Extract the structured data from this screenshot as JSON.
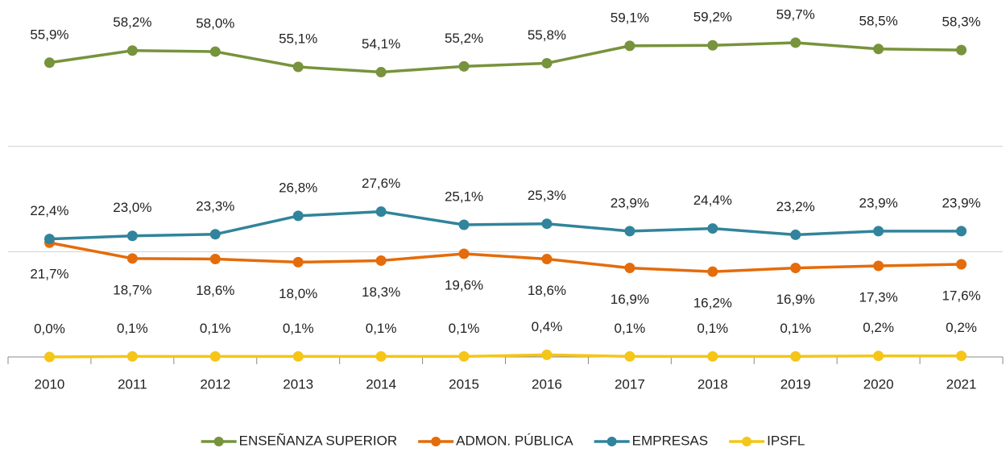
{
  "chart_data": {
    "type": "line",
    "categories": [
      "2010",
      "2011",
      "2012",
      "2013",
      "2014",
      "2015",
      "2016",
      "2017",
      "2018",
      "2019",
      "2020",
      "2021"
    ],
    "ylim": [
      0,
      60
    ],
    "yticks": [
      0,
      20,
      40
    ],
    "grid": true,
    "legend": "bottom",
    "series": [
      {
        "name": "ENSEÑANZA SUPERIOR",
        "color": "#77933c",
        "values": [
          55.9,
          58.2,
          58.0,
          55.1,
          54.1,
          55.2,
          55.8,
          59.1,
          59.2,
          59.7,
          58.5,
          58.3
        ],
        "value_labels": [
          "55,9%",
          "58,2%",
          "58,0%",
          "55,1%",
          "54,1%",
          "55,2%",
          "55,8%",
          "59,1%",
          "59,2%",
          "59,7%",
          "58,5%",
          "58,3%"
        ]
      },
      {
        "name": "ADMON. PÚBLICA",
        "color": "#e46c0a",
        "values": [
          21.7,
          18.7,
          18.6,
          18.0,
          18.3,
          19.6,
          18.6,
          16.9,
          16.2,
          16.9,
          17.3,
          17.6
        ],
        "value_labels": [
          "21,7%",
          "18,7%",
          "18,6%",
          "18,0%",
          "18,3%",
          "19,6%",
          "18,6%",
          "16,9%",
          "16,2%",
          "16,9%",
          "17,3%",
          "17,6%"
        ]
      },
      {
        "name": "EMPRESAS",
        "color": "#31849b",
        "values": [
          22.4,
          23.0,
          23.3,
          26.8,
          27.6,
          25.1,
          25.3,
          23.9,
          24.4,
          23.2,
          23.9,
          23.9
        ],
        "value_labels": [
          "22,4%",
          "23,0%",
          "23,3%",
          "26,8%",
          "27,6%",
          "25,1%",
          "25,3%",
          "23,9%",
          "24,4%",
          "23,2%",
          "23,9%",
          "23,9%"
        ]
      },
      {
        "name": "IPSFL",
        "color": "#f5c518",
        "values": [
          0.0,
          0.1,
          0.1,
          0.1,
          0.1,
          0.1,
          0.4,
          0.1,
          0.1,
          0.1,
          0.2,
          0.2
        ],
        "value_labels": [
          "0,0%",
          "0,1%",
          "0,1%",
          "0,1%",
          "0,1%",
          "0,1%",
          "0,4%",
          "0,1%",
          "0,1%",
          "0,1%",
          "0,2%",
          "0,2%"
        ]
      }
    ]
  }
}
